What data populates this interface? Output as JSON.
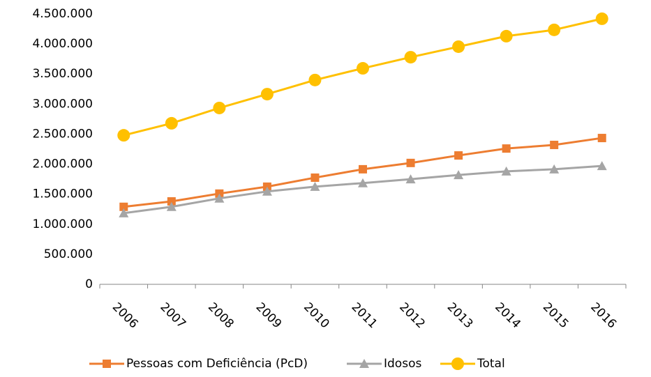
{
  "chart_data": {
    "type": "line",
    "categories": [
      "2006",
      "2007",
      "2008",
      "2009",
      "2010",
      "2011",
      "2012",
      "2013",
      "2014",
      "2015",
      "2016"
    ],
    "series": [
      {
        "name": "Pessoas com Deficiência (PcD)",
        "color": "#ED7D31",
        "marker": "square",
        "values": [
          1290000,
          1380000,
          1510000,
          1625000,
          1775000,
          1915000,
          2020000,
          2145000,
          2260000,
          2320000,
          2435000
        ]
      },
      {
        "name": "Idosos",
        "color": "#A5A5A5",
        "marker": "triangle",
        "values": [
          1185000,
          1290000,
          1430000,
          1545000,
          1625000,
          1685000,
          1750000,
          1820000,
          1880000,
          1915000,
          1970000
        ]
      },
      {
        "name": "Total",
        "color": "#FFC000",
        "marker": "circle",
        "values": [
          2480000,
          2680000,
          2935000,
          3165000,
          3400000,
          3595000,
          3780000,
          3955000,
          4130000,
          4235000,
          4420000
        ]
      }
    ],
    "ylim": [
      0,
      4500000
    ],
    "yticks": [
      0,
      {
        "value": 500000,
        "label": "500.000"
      },
      {
        "value": 1000000,
        "label": "1.000.000"
      },
      {
        "value": 1500000,
        "label": "1.500.000"
      },
      {
        "value": 2000000,
        "label": "2.000.000"
      },
      {
        "value": 2500000,
        "label": "2.500.000"
      },
      {
        "value": 3000000,
        "label": "3.000.000"
      },
      {
        "value": 3500000,
        "label": "3.500.000"
      },
      {
        "value": 4000000,
        "label": "4.000.000"
      },
      {
        "value": 4500000,
        "label": "4.500.000"
      }
    ],
    "grid": false,
    "legend": "bottom"
  }
}
